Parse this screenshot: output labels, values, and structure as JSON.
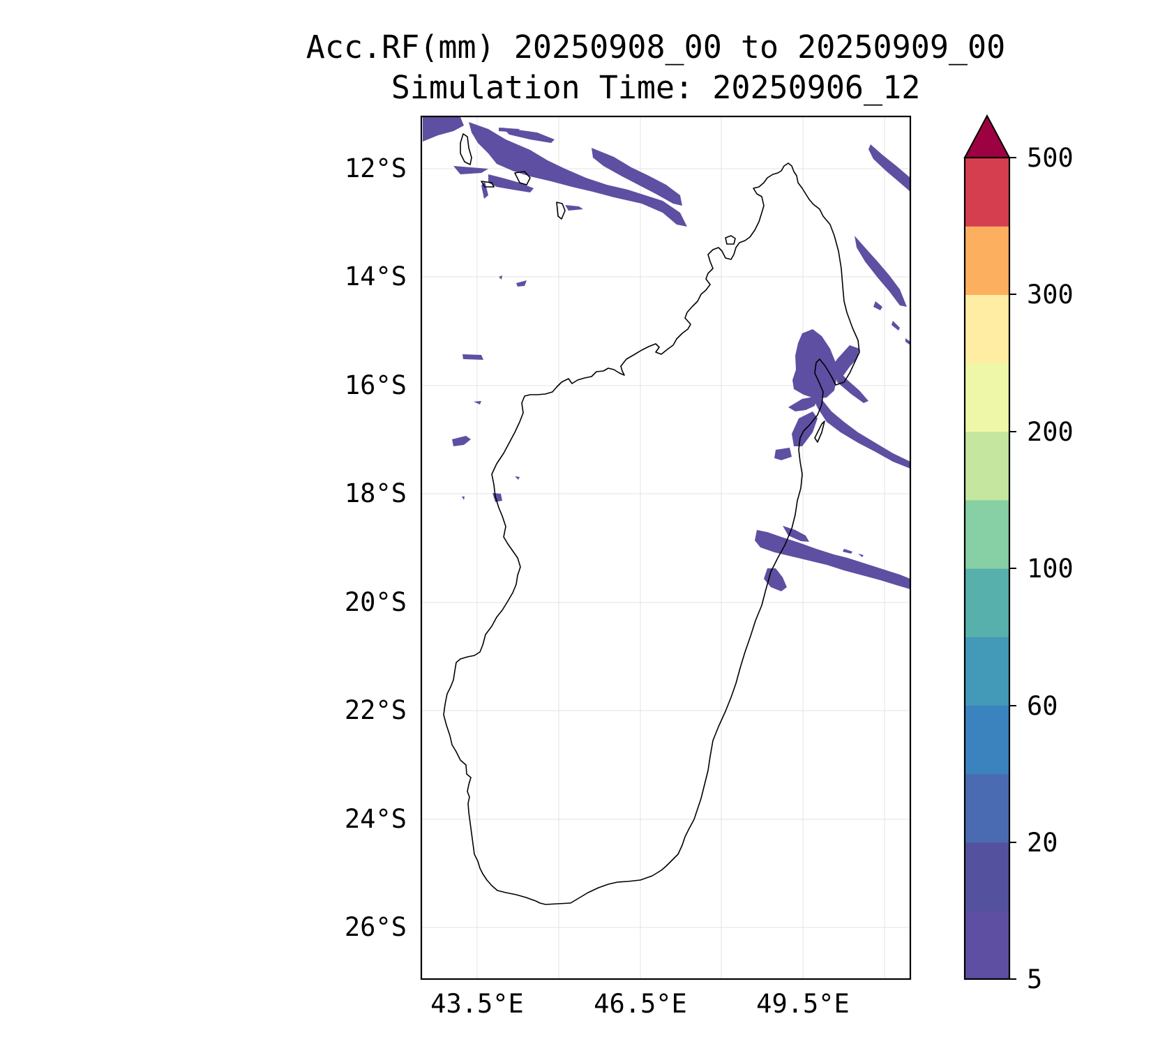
{
  "title": {
    "line1": "Acc.RF(mm) 20250908_00 to 20250909_00",
    "line2": "Simulation Time: 20250906_12"
  },
  "map": {
    "region": "Madagascar",
    "lon_range": [
      42.45,
      51.45
    ],
    "lat_range": [
      -26.95,
      -11.05
    ],
    "lat_ticks": [
      "12°S",
      "14°S",
      "16°S",
      "18°S",
      "20°S",
      "22°S",
      "24°S",
      "26°S"
    ],
    "lat_tick_values": [
      -12,
      -14,
      -16,
      -18,
      -20,
      -22,
      -24,
      -26
    ],
    "lon_ticks": [
      "43.5°E",
      "46.5°E",
      "49.5°E"
    ],
    "lon_tick_values": [
      43.5,
      46.5,
      49.5
    ],
    "gridlines": true,
    "precip_color": "#5e4fa2"
  },
  "colorbar": {
    "tick_labels": [
      "5",
      "20",
      "60",
      "100",
      "200",
      "300",
      "500"
    ],
    "extend": "max",
    "colors": [
      "#5e4fa2",
      "#54519f",
      "#4a6bb2",
      "#3a83be",
      "#4399b8",
      "#57b0ac",
      "#87cfa4",
      "#c4e69f",
      "#eef6a8",
      "#feeda2",
      "#fdaf60",
      "#d53e4f",
      "#9e0142"
    ]
  }
}
